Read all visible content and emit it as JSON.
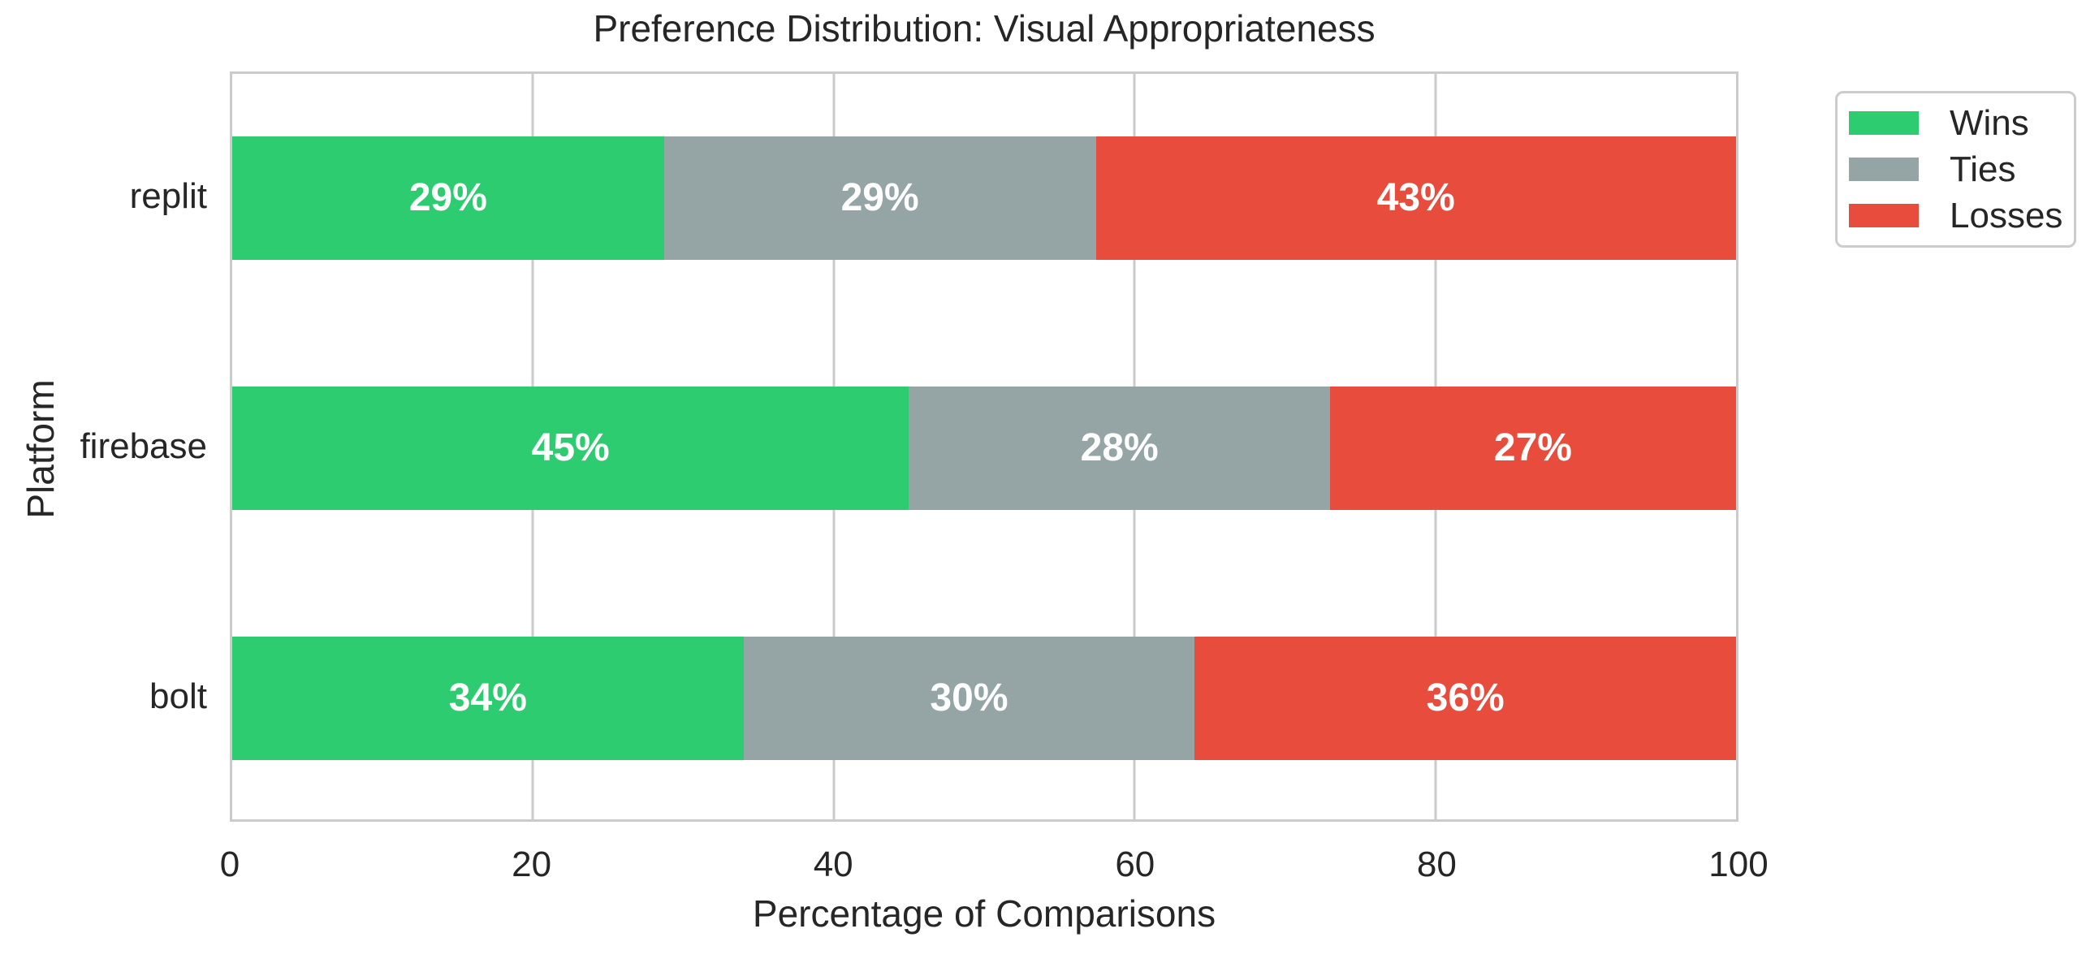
{
  "title": "Preference Distribution: Visual Appropriateness",
  "chart_data": {
    "type": "bar",
    "orientation": "horizontal",
    "stacked": true,
    "title": "Preference Distribution: Visual Appropriateness",
    "xlabel": "Percentage of Comparisons",
    "ylabel": "Platform",
    "categories": [
      "replit",
      "firebase",
      "bolt"
    ],
    "series": [
      {
        "name": "Wins",
        "color": "#2ecc71",
        "values": [
          29,
          45,
          34
        ],
        "labels": [
          "29%",
          "45%",
          "34%"
        ]
      },
      {
        "name": "Ties",
        "color": "#95a5a6",
        "values": [
          29,
          28,
          30
        ],
        "labels": [
          "29%",
          "28%",
          "30%"
        ]
      },
      {
        "name": "Losses",
        "color": "#e74c3c",
        "values": [
          43,
          27,
          36
        ],
        "labels": [
          "43%",
          "27%",
          "36%"
        ]
      }
    ],
    "xlim": [
      0,
      100
    ],
    "xticks": [
      0,
      20,
      40,
      60,
      80,
      100
    ],
    "grid": "vertical-only",
    "grid_color": "#cbcbcb",
    "legend_position": "outside-upper-right",
    "bar_label_color": "#ffffff",
    "text_color": "#262626"
  }
}
